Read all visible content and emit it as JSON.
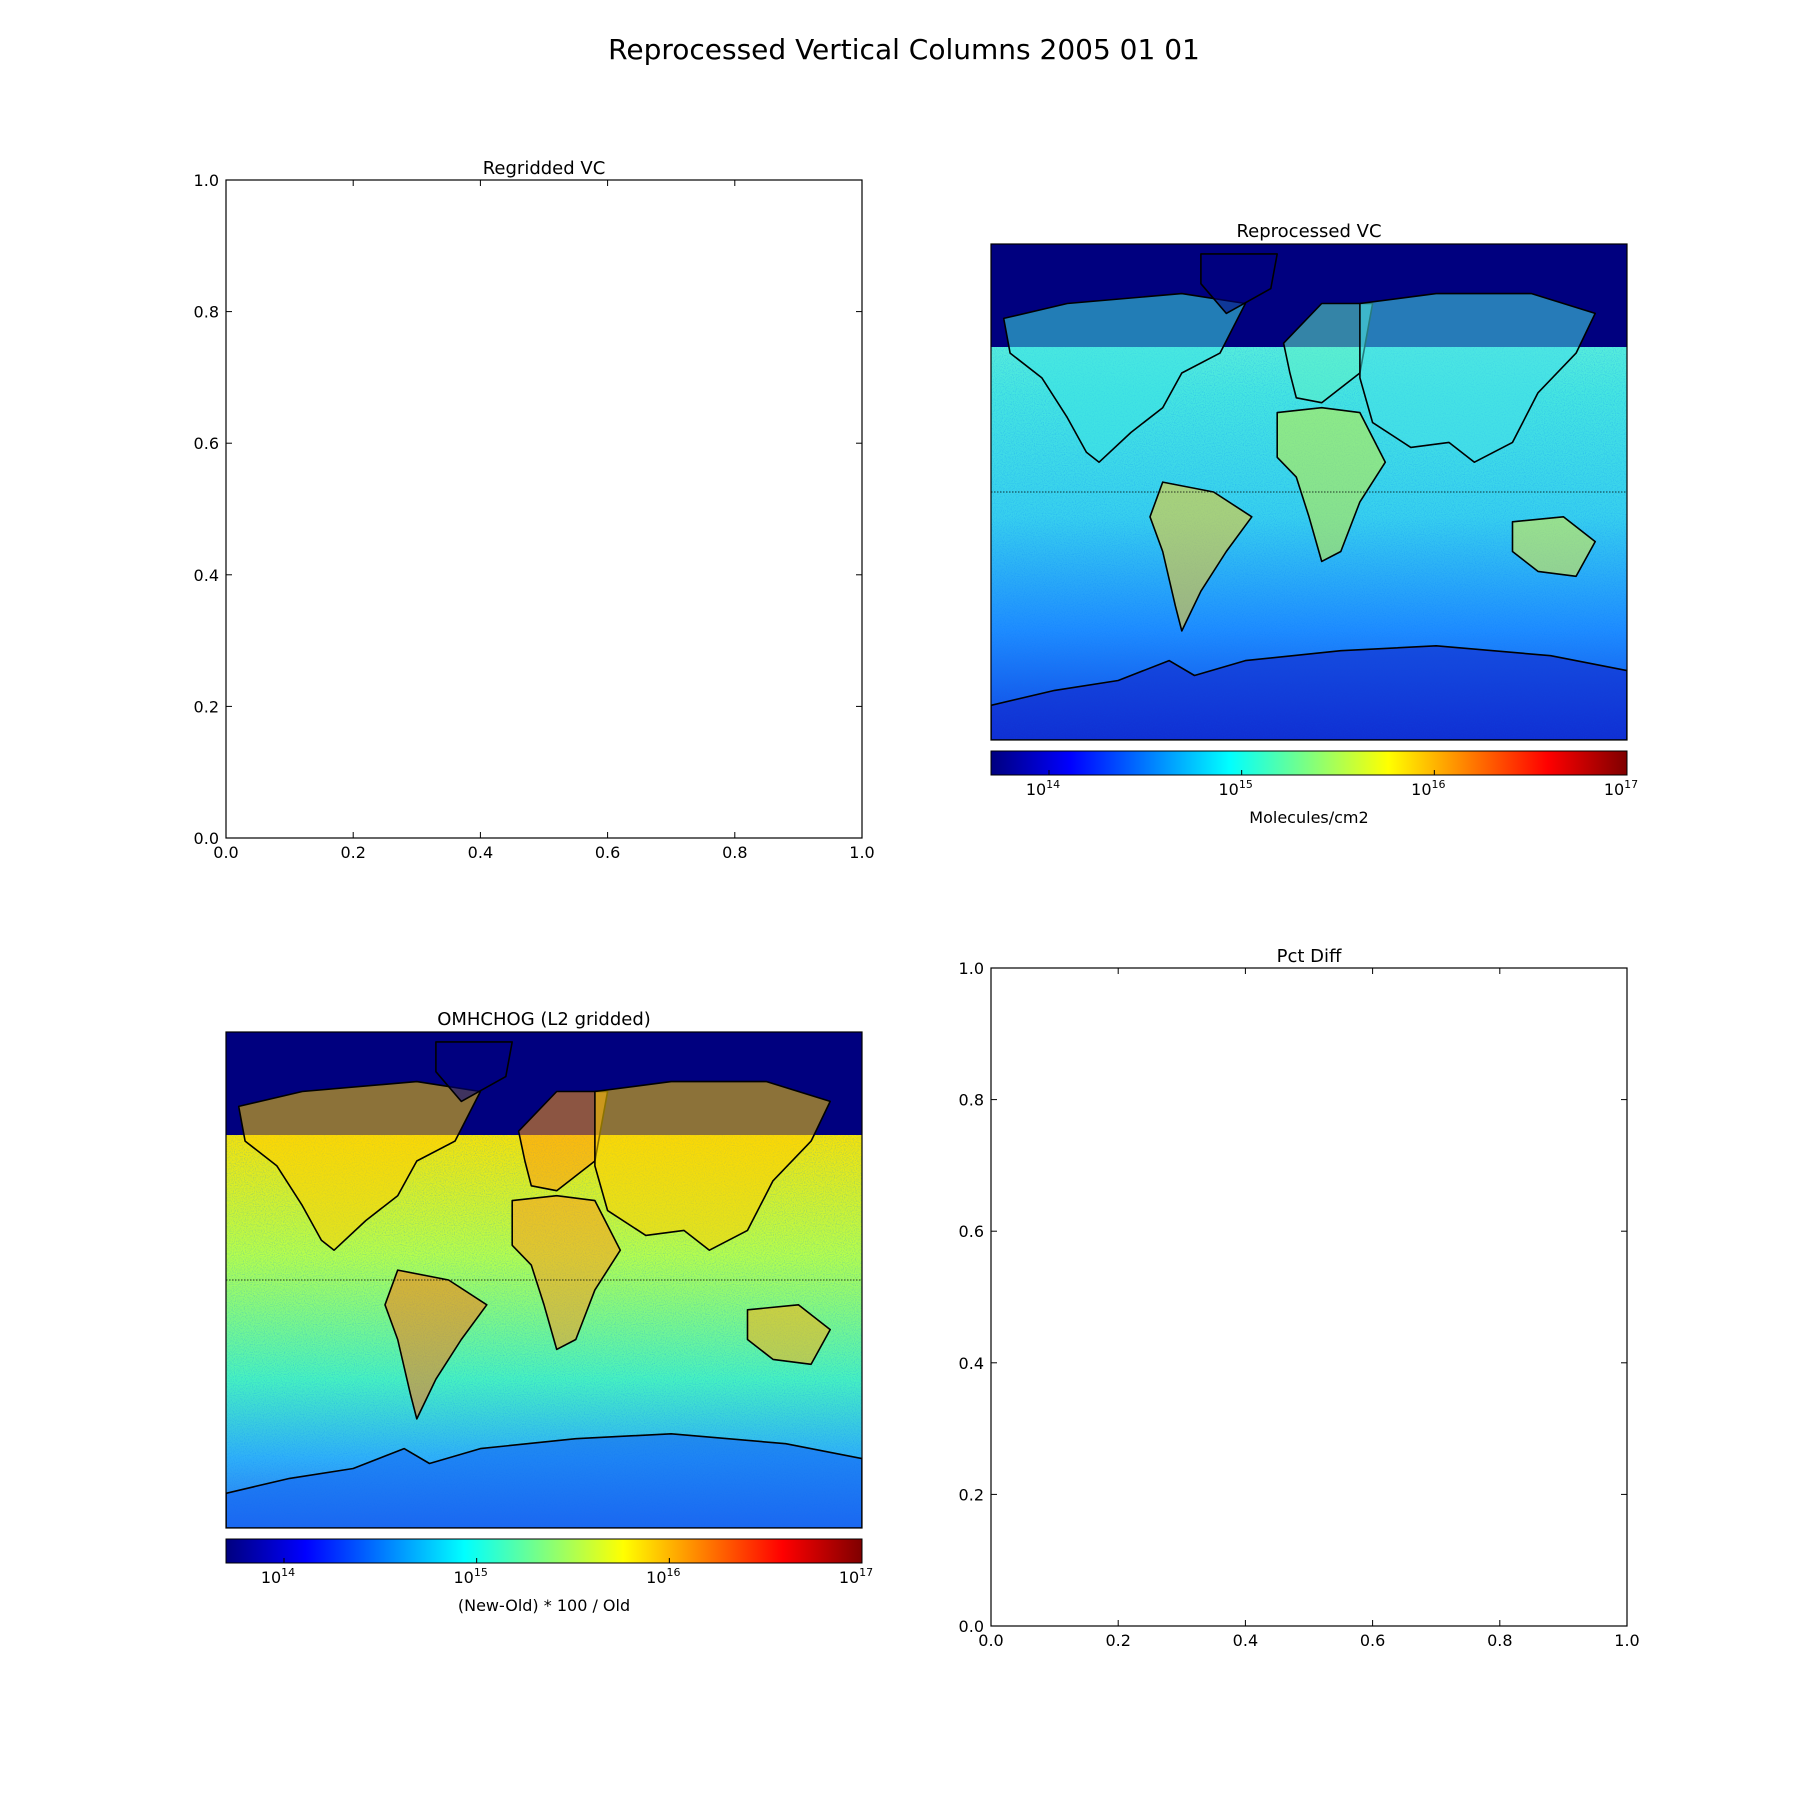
{
  "figure_title": "Reprocessed Vertical Columns 2005 01 01",
  "colormap": [
    "#00007f",
    "#0000ff",
    "#007fff",
    "#00ffff",
    "#7fff7f",
    "#ffff00",
    "#ff7f00",
    "#ff0000",
    "#7f0000"
  ],
  "ocean_color": "#3ad6e0",
  "land_outline_color": "#000000",
  "chart_data": [
    {
      "type": "empty",
      "title": "Regridded VC",
      "xlim": [
        0.0,
        1.0
      ],
      "ylim": [
        0.0,
        1.0
      ],
      "xticks": [
        "0.0",
        "0.2",
        "0.4",
        "0.6",
        "0.8",
        "1.0"
      ],
      "yticks": [
        "0.0",
        "0.2",
        "0.4",
        "0.6",
        "0.8",
        "1.0"
      ]
    },
    {
      "type": "heatmap",
      "title": "Reprocessed VC",
      "colorbar": {
        "scale": "log",
        "range": [
          50000000000000.0,
          1e+17
        ],
        "tick_values": [
          100000000000000.0,
          1000000000000000.0,
          1e+16,
          1e+17
        ],
        "tick_bases": [
          "10",
          "10",
          "10",
          "10"
        ],
        "tick_exponents": [
          "14",
          "15",
          "16",
          "17"
        ],
        "label": "Molecules/cm2"
      }
    },
    {
      "type": "heatmap",
      "title": "OMHCHOG (L2 gridded)",
      "colorbar": {
        "scale": "log",
        "range": [
          50000000000000.0,
          1e+17
        ],
        "tick_values": [
          100000000000000.0,
          1000000000000000.0,
          1e+16,
          1e+17
        ],
        "tick_bases": [
          "10",
          "10",
          "10",
          "10"
        ],
        "tick_exponents": [
          "14",
          "15",
          "16",
          "17"
        ],
        "label": "(New-Old) * 100 / Old"
      }
    },
    {
      "type": "empty",
      "title": "Pct Diff",
      "xlim": [
        0.0,
        1.0
      ],
      "ylim": [
        0.0,
        1.0
      ],
      "xticks": [
        "0.0",
        "0.2",
        "0.4",
        "0.6",
        "0.8",
        "1.0"
      ],
      "yticks": [
        "0.0",
        "0.2",
        "0.4",
        "0.6",
        "0.8",
        "1.0"
      ]
    }
  ]
}
